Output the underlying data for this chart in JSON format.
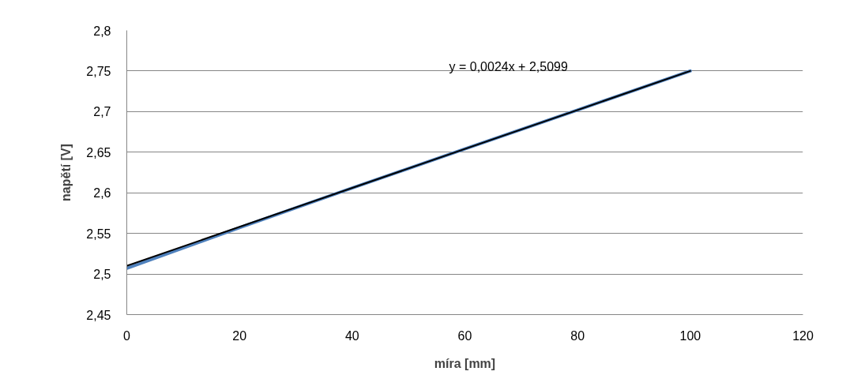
{
  "chart_data": {
    "type": "line",
    "xlabel": "míra [mm]",
    "ylabel": "napětí [V]",
    "x": [
      0,
      20,
      40,
      60,
      80,
      100
    ],
    "series": [
      {
        "color": "#4f81bd",
        "values": [
          2.507,
          2.557,
          2.606,
          2.654,
          2.702,
          2.75
        ]
      },
      {
        "color": "#000000",
        "x": [
          0,
          100
        ],
        "values": [
          2.51,
          2.75
        ]
      }
    ],
    "annotations": [
      "y = 0,0024x + 2,5099"
    ],
    "xlim": [
      0,
      120
    ],
    "ylim": [
      2.45,
      2.8
    ],
    "xticks": [
      0,
      20,
      40,
      60,
      80,
      100,
      120
    ],
    "yticks": [
      {
        "value": 2.45,
        "label": "2,45"
      },
      {
        "value": 2.5,
        "label": "2,5"
      },
      {
        "value": 2.55,
        "label": "2,55"
      },
      {
        "value": 2.6,
        "label": "2,6"
      },
      {
        "value": 2.65,
        "label": "2,65"
      },
      {
        "value": 2.7,
        "label": "2,7"
      },
      {
        "value": 2.75,
        "label": "2,75"
      },
      {
        "value": 2.8,
        "label": "2,8"
      }
    ],
    "grid": "y",
    "marker": "none",
    "line_style": "solid"
  }
}
